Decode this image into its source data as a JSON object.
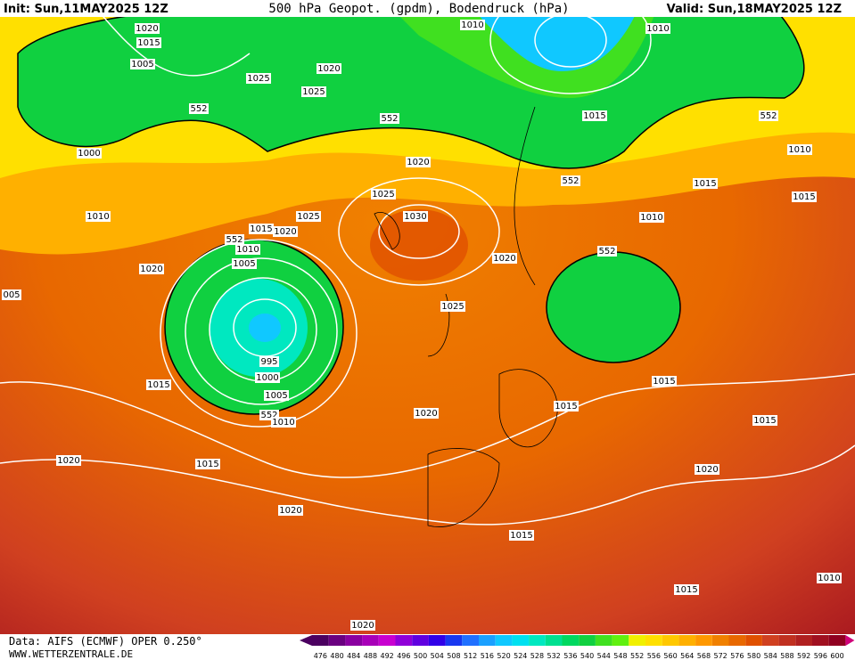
{
  "header": {
    "init": "Init: Sun,11MAY2025 12Z",
    "title": "500 hPa Geopot. (gpdm), Bodendruck (hPa)",
    "valid": "Valid: Sun,18MAY2025 12Z"
  },
  "isobar_labels": [
    "1020",
    "1015",
    "1005",
    "1025",
    "1025",
    "1020",
    "1010",
    "1010",
    "1015",
    "552",
    "552",
    "552",
    "1000",
    "1020",
    "1025",
    "1010",
    "1015",
    "1015",
    "552",
    "1010",
    "1030",
    "1025",
    "1015",
    "1020",
    "1010",
    "552",
    "1010",
    "1005",
    "1020",
    "552",
    "1020",
    "1025",
    "995",
    "1000",
    "1005",
    "1015",
    "1015",
    "1015",
    "1020",
    "552",
    "1010",
    "1015",
    "1020",
    "1015",
    "1020",
    "1020",
    "1015",
    "1015",
    "1010",
    "1020",
    "005"
  ],
  "colorbar": {
    "labels": [
      476,
      480,
      484,
      488,
      492,
      496,
      500,
      504,
      508,
      512,
      516,
      520,
      524,
      528,
      532,
      536,
      540,
      544,
      548,
      552,
      556,
      560,
      564,
      568,
      572,
      576,
      580,
      584,
      588,
      592,
      596,
      600
    ],
    "colors": [
      "#4b0060",
      "#6a0080",
      "#8a00a0",
      "#a800b8",
      "#c800d0",
      "#9000d8",
      "#6000e0",
      "#3000e8",
      "#1838f0",
      "#2070ff",
      "#1aa0ff",
      "#10c8ff",
      "#00e0f0",
      "#00e8c0",
      "#00e090",
      "#00d860",
      "#10d040",
      "#40e020",
      "#60f010",
      "#f0f000",
      "#ffe000",
      "#ffc800",
      "#ffb000",
      "#ff9800",
      "#f08000",
      "#e86800",
      "#e05000",
      "#d04020",
      "#c03020",
      "#b02020",
      "#a01020",
      "#900020"
    ]
  },
  "footer": {
    "data": "Data: AIFS (ECMWF) OPER 0.250°",
    "site": "WWW.WETTERZENTRALE.DE"
  }
}
